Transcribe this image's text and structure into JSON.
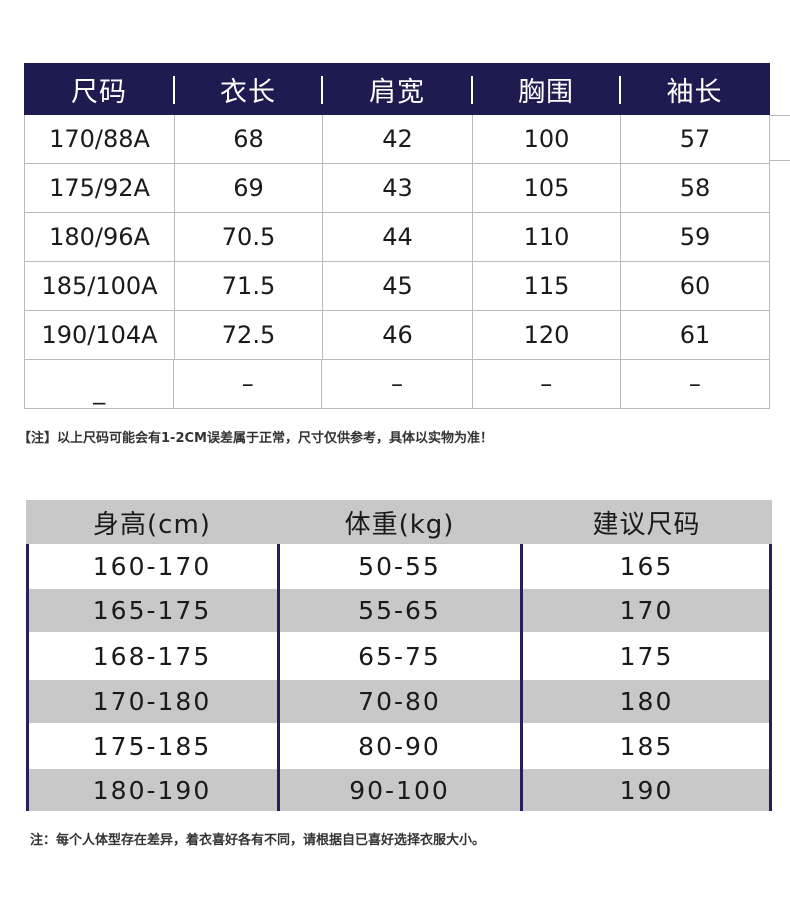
{
  "size_table": {
    "headers": [
      "尺码",
      "衣长",
      "肩宽",
      "胸围",
      "袖长"
    ],
    "rows": [
      [
        "170/88A",
        "68",
        "42",
        "100",
        "57"
      ],
      [
        "175/92A",
        "69",
        "43",
        "105",
        "58"
      ],
      [
        "180/96A",
        "70.5",
        "44",
        "110",
        "59"
      ],
      [
        "185/100A",
        "71.5",
        "45",
        "115",
        "60"
      ],
      [
        "190/104A",
        "72.5",
        "46",
        "120",
        "61"
      ],
      [
        "_",
        "–",
        "–",
        "–",
        "–"
      ]
    ],
    "header_bg": "#1e1b50",
    "note": "【注】以上尺码可能会有1-2CM误差属于正常，尺寸仅供参考，具体以实物为准！"
  },
  "recommend_table": {
    "headers": [
      "身高(cm)",
      "体重(kg)",
      "建议尺码"
    ],
    "rows": [
      [
        "160-170",
        "50-55",
        "165"
      ],
      [
        "165-175",
        "55-65",
        "170"
      ],
      [
        "168-175",
        "65-75",
        "175"
      ],
      [
        "170-180",
        "70-80",
        "180"
      ],
      [
        "175-185",
        "80-90",
        "185"
      ],
      [
        "180-190",
        "90-100",
        "190"
      ]
    ],
    "stripe_color": "#c8c8c8",
    "divider_color": "#23205a",
    "note": "注：每个人体型存在差异，着衣喜好各有不同，请根据自已喜好选择衣服大小。"
  }
}
